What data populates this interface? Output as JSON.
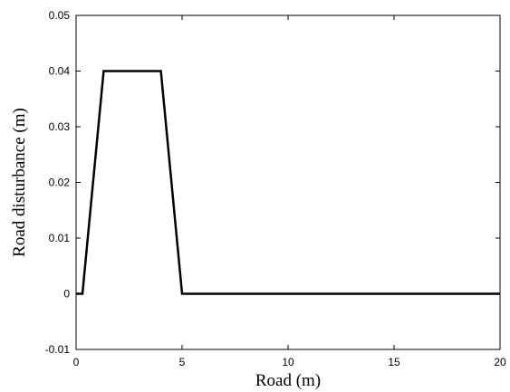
{
  "chart_data": {
    "type": "line",
    "title": "",
    "xlabel": "Road (m)",
    "ylabel": "Road disturbance (m)",
    "xlim": [
      0,
      20
    ],
    "ylim": [
      -0.01,
      0.05
    ],
    "xticks": [
      0,
      5,
      10,
      15,
      20
    ],
    "yticks": [
      -0.01,
      0,
      0.01,
      0.02,
      0.03,
      0.04,
      0.05
    ],
    "xtick_labels": [
      "0",
      "5",
      "10",
      "15",
      "20"
    ],
    "ytick_labels": [
      "-0.01",
      "0",
      "0.01",
      "0.02",
      "0.03",
      "0.04",
      "0.05"
    ],
    "grid": false,
    "legend": "none",
    "line_color": "#000000",
    "series": [
      {
        "x": [
          0,
          0.3,
          1.3,
          4.0,
          5.0,
          20
        ],
        "y": [
          0,
          0,
          0.04,
          0.04,
          0,
          0
        ]
      }
    ]
  }
}
